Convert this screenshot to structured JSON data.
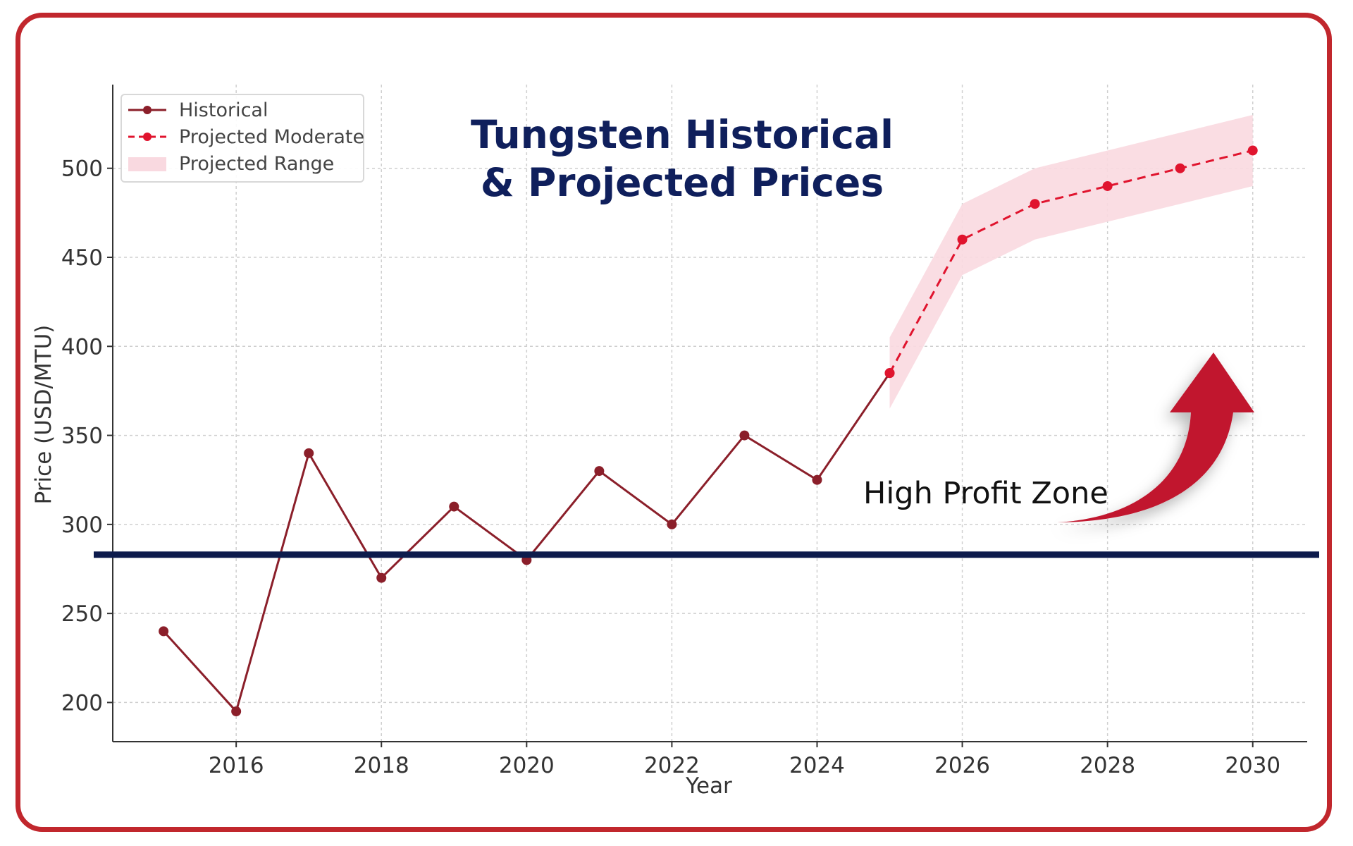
{
  "chart_data": {
    "type": "line",
    "title_lines": [
      "Tungsten Historical",
      "& Projected Prices"
    ],
    "xlabel": "Year",
    "ylabel": "Price (USD/MTU)",
    "xlim": [
      2014.3,
      2030.75
    ],
    "ylim": [
      178,
      547
    ],
    "x_ticks": [
      2016,
      2018,
      2020,
      2022,
      2024,
      2026,
      2028,
      2030
    ],
    "y_ticks": [
      200,
      250,
      300,
      350,
      400,
      450,
      500
    ],
    "grid": true,
    "legend_position": "top-left",
    "legend": [
      "Historical",
      "Projected Moderate",
      "Projected Range"
    ],
    "series": [
      {
        "name": "Historical",
        "style": "solid",
        "color": "#8b1f2a",
        "x": [
          2015,
          2016,
          2017,
          2018,
          2019,
          2020,
          2021,
          2022,
          2023,
          2024,
          2025
        ],
        "values": [
          240,
          195,
          340,
          270,
          310,
          280,
          330,
          300,
          350,
          325,
          385
        ]
      },
      {
        "name": "Projected Moderate",
        "style": "dashed",
        "color": "#e0142e",
        "x": [
          2025,
          2026,
          2027,
          2028,
          2029,
          2030
        ],
        "values": [
          385,
          460,
          480,
          490,
          500,
          510
        ]
      }
    ],
    "range": {
      "name": "Projected Range",
      "color": "#f9d9e0",
      "x": [
        2025,
        2026,
        2027,
        2028,
        2029,
        2030
      ],
      "low": [
        365,
        440,
        460,
        470,
        480,
        490
      ],
      "high": [
        405,
        480,
        500,
        510,
        520,
        530
      ]
    },
    "reference_line": {
      "y": 283,
      "color": "#0d1b4c"
    },
    "annotation": {
      "text": "High Profit Zone",
      "arrow_color": "#c1182f"
    }
  }
}
